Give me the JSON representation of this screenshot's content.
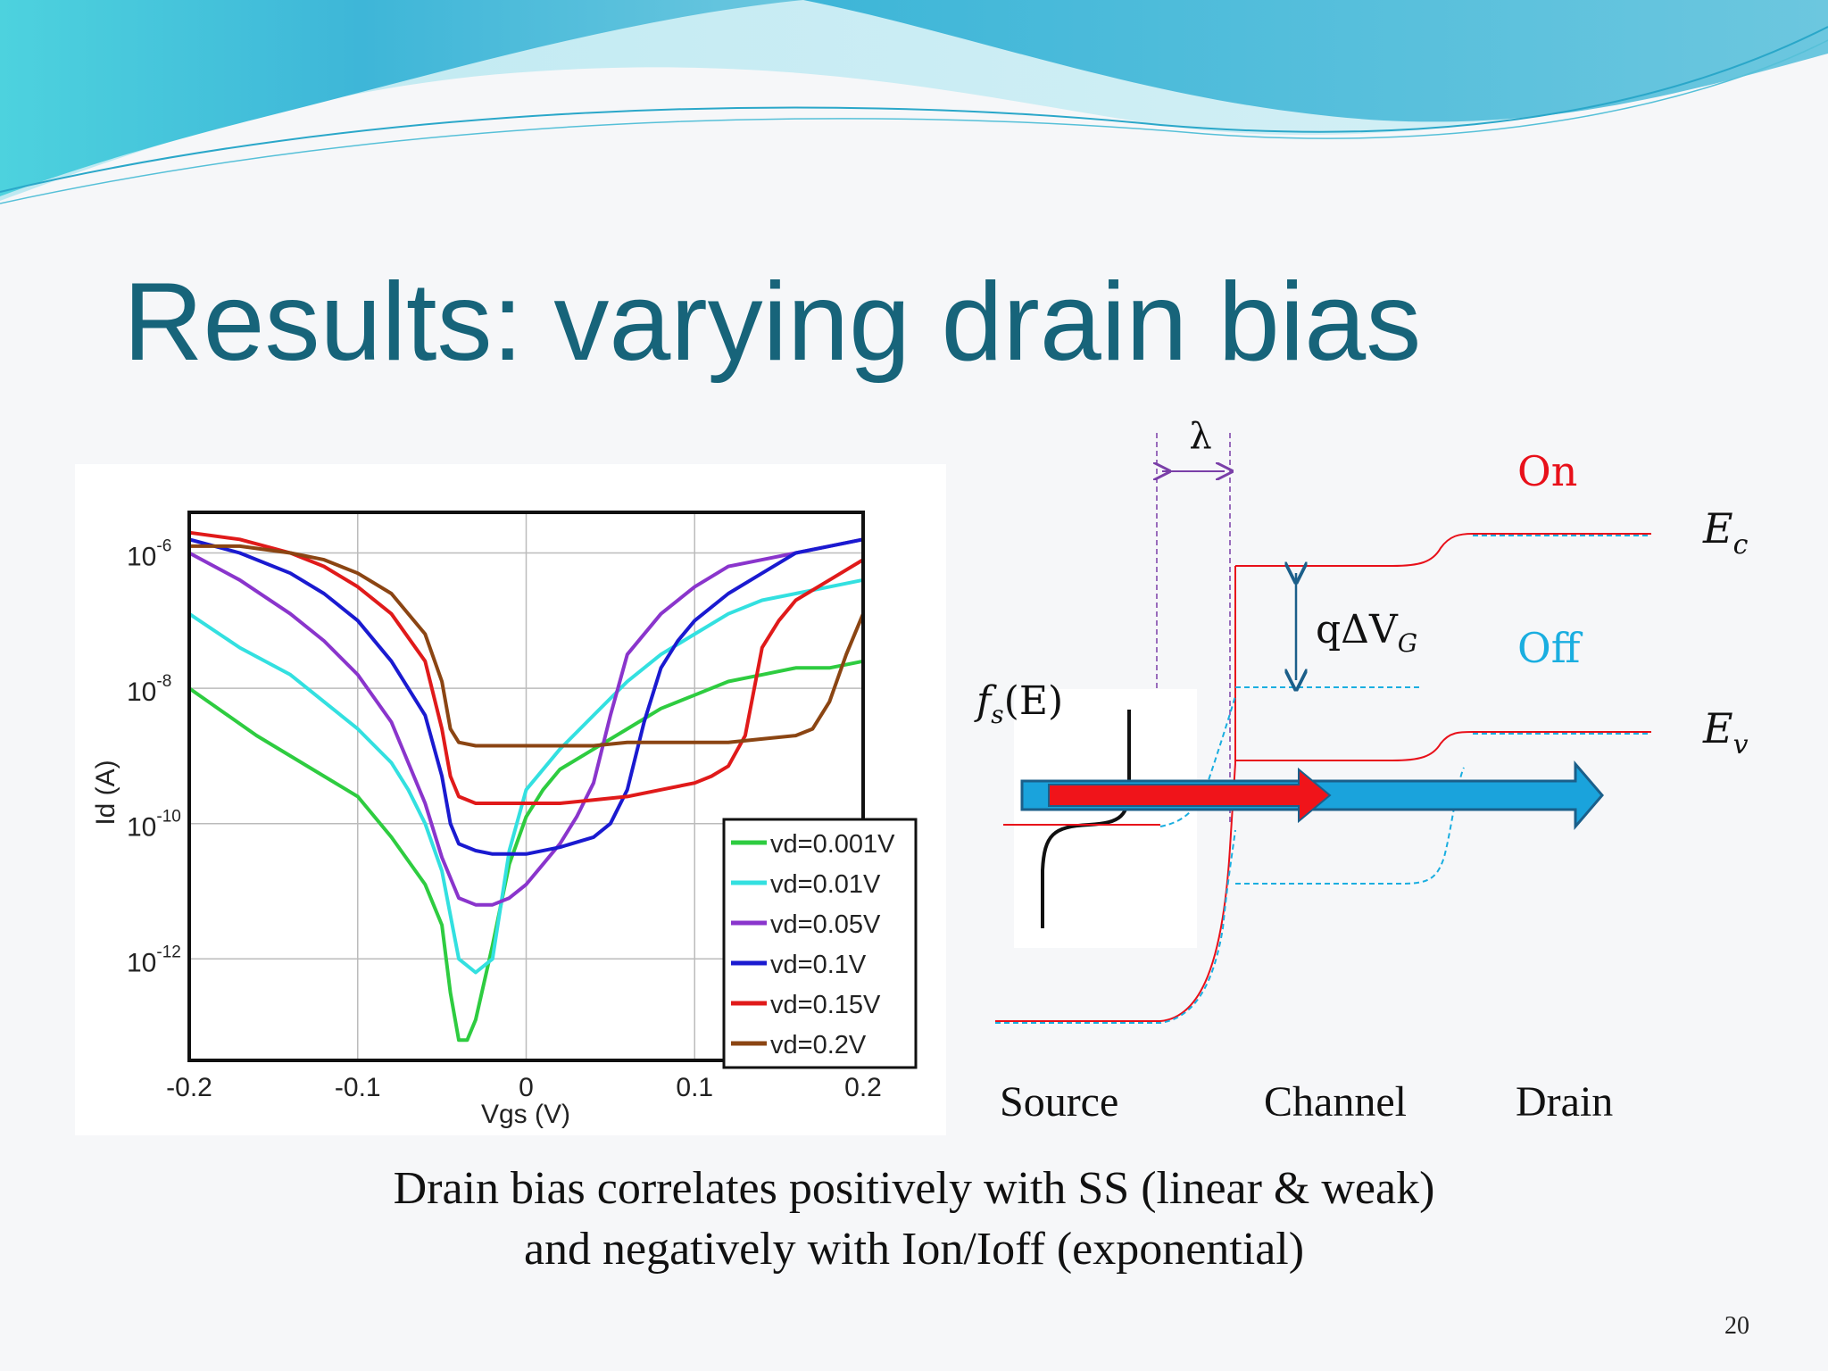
{
  "slide": {
    "title": "Results: varying drain bias",
    "caption_line1": "Drain bias correlates positively with SS (linear & weak)",
    "caption_line2": "and negatively with Ion/Ioff (exponential)",
    "page_number": "20"
  },
  "band_diagram": {
    "lambda_label": "λ",
    "on_label": "On",
    "off_label": "Off",
    "ec_label": "E",
    "ec_sub": "c",
    "ev_label": "E",
    "ev_sub": "v",
    "qdv_label": "qΔV",
    "qdv_sub": "G",
    "fs_label": "f",
    "fs_sub": "s",
    "fs_arg": "(E)",
    "regions": [
      "Source",
      "Channel",
      "Drain"
    ],
    "colors": {
      "on": "#e8101a",
      "off": "#1aaee0",
      "lambda": "#7a3fa8",
      "arrow_blue": "#1aa3dc",
      "arrow_red": "#f0141a"
    }
  },
  "chart_data": {
    "type": "line",
    "title": "",
    "xlabel": "Vgs (V)",
    "ylabel": "Id (A)",
    "xlim": [
      -0.2,
      0.2
    ],
    "ylim_log10": [
      -13.5,
      -5.4
    ],
    "xticks": [
      -0.2,
      -0.1,
      0,
      0.1,
      0.2
    ],
    "xtick_labels": [
      "-0.2",
      "-0.1",
      "0",
      "0.1",
      "0.2"
    ],
    "yticks_log10": [
      -6,
      -8,
      -10,
      -12
    ],
    "ytick_base": "10",
    "ytick_exponents": [
      "-6",
      "-8",
      "-10",
      "-12"
    ],
    "grid": true,
    "legend_position": "bottom-right",
    "series": [
      {
        "name": "vd=0.001V",
        "color": "#2ecc40",
        "x": [
          -0.2,
          -0.16,
          -0.12,
          -0.1,
          -0.08,
          -0.06,
          -0.05,
          -0.045,
          -0.04,
          -0.035,
          -0.03,
          -0.02,
          -0.01,
          0,
          0.01,
          0.02,
          0.04,
          0.06,
          0.08,
          0.1,
          0.12,
          0.14,
          0.16,
          0.18,
          0.2
        ],
        "y": [
          -8.0,
          -8.7,
          -9.3,
          -9.6,
          -10.2,
          -10.9,
          -11.5,
          -12.5,
          -13.2,
          -13.2,
          -12.9,
          -11.8,
          -10.6,
          -9.9,
          -9.5,
          -9.2,
          -8.9,
          -8.6,
          -8.3,
          -8.1,
          -7.9,
          -7.8,
          -7.7,
          -7.7,
          -7.6
        ]
      },
      {
        "name": "vd=0.01V",
        "color": "#33e0e0",
        "x": [
          -0.2,
          -0.17,
          -0.14,
          -0.12,
          -0.1,
          -0.08,
          -0.07,
          -0.06,
          -0.05,
          -0.04,
          -0.03,
          -0.02,
          -0.015,
          -0.01,
          0,
          0.02,
          0.04,
          0.06,
          0.08,
          0.1,
          0.12,
          0.14,
          0.16,
          0.18,
          0.2
        ],
        "y": [
          -6.9,
          -7.4,
          -7.8,
          -8.2,
          -8.6,
          -9.1,
          -9.5,
          -10.0,
          -10.7,
          -12.0,
          -12.2,
          -12.0,
          -11.2,
          -10.4,
          -9.5,
          -8.9,
          -8.4,
          -7.9,
          -7.5,
          -7.2,
          -6.9,
          -6.7,
          -6.6,
          -6.5,
          -6.4
        ]
      },
      {
        "name": "vd=0.05V",
        "color": "#8a35cc",
        "x": [
          -0.2,
          -0.17,
          -0.14,
          -0.12,
          -0.1,
          -0.08,
          -0.07,
          -0.06,
          -0.05,
          -0.04,
          -0.03,
          -0.02,
          -0.01,
          0,
          0.01,
          0.02,
          0.03,
          0.04,
          0.05,
          0.06,
          0.08,
          0.1,
          0.12,
          0.14,
          0.16,
          0.18,
          0.2
        ],
        "y": [
          -6.0,
          -6.4,
          -6.9,
          -7.3,
          -7.8,
          -8.5,
          -9.1,
          -9.7,
          -10.5,
          -11.1,
          -11.2,
          -11.2,
          -11.1,
          -10.9,
          -10.6,
          -10.3,
          -9.9,
          -9.4,
          -8.4,
          -7.5,
          -6.9,
          -6.5,
          -6.2,
          -6.1,
          -6.0,
          -5.9,
          -5.8
        ]
      },
      {
        "name": "vd=0.1V",
        "color": "#1a1ad0",
        "x": [
          -0.2,
          -0.17,
          -0.14,
          -0.12,
          -0.1,
          -0.08,
          -0.06,
          -0.05,
          -0.045,
          -0.04,
          -0.03,
          -0.02,
          -0.01,
          0,
          0.02,
          0.04,
          0.05,
          0.06,
          0.07,
          0.08,
          0.09,
          0.1,
          0.12,
          0.14,
          0.16,
          0.18,
          0.2
        ],
        "y": [
          -5.8,
          -6.0,
          -6.3,
          -6.6,
          -7.0,
          -7.6,
          -8.4,
          -9.3,
          -10.0,
          -10.3,
          -10.4,
          -10.45,
          -10.45,
          -10.45,
          -10.35,
          -10.2,
          -10.0,
          -9.5,
          -8.5,
          -7.7,
          -7.3,
          -7.0,
          -6.6,
          -6.3,
          -6.0,
          -5.9,
          -5.8
        ]
      },
      {
        "name": "vd=0.15V",
        "color": "#e01a1a",
        "x": [
          -0.2,
          -0.17,
          -0.14,
          -0.12,
          -0.1,
          -0.08,
          -0.06,
          -0.05,
          -0.045,
          -0.04,
          -0.03,
          -0.02,
          0,
          0.02,
          0.04,
          0.06,
          0.08,
          0.1,
          0.11,
          0.12,
          0.13,
          0.14,
          0.15,
          0.16,
          0.18,
          0.2
        ],
        "y": [
          -5.7,
          -5.8,
          -6.0,
          -6.2,
          -6.5,
          -6.9,
          -7.6,
          -8.6,
          -9.3,
          -9.6,
          -9.7,
          -9.7,
          -9.7,
          -9.7,
          -9.65,
          -9.6,
          -9.5,
          -9.4,
          -9.3,
          -9.15,
          -8.7,
          -7.4,
          -7.0,
          -6.7,
          -6.4,
          -6.1
        ]
      },
      {
        "name": "vd=0.2V",
        "color": "#8b4513",
        "x": [
          -0.2,
          -0.17,
          -0.14,
          -0.12,
          -0.1,
          -0.08,
          -0.06,
          -0.05,
          -0.045,
          -0.04,
          -0.03,
          -0.02,
          0,
          0.02,
          0.04,
          0.06,
          0.08,
          0.1,
          0.12,
          0.14,
          0.16,
          0.17,
          0.18,
          0.19,
          0.2
        ],
        "y": [
          -5.9,
          -5.9,
          -6.0,
          -6.1,
          -6.3,
          -6.6,
          -7.2,
          -7.9,
          -8.6,
          -8.8,
          -8.85,
          -8.85,
          -8.85,
          -8.85,
          -8.85,
          -8.8,
          -8.8,
          -8.8,
          -8.8,
          -8.75,
          -8.7,
          -8.6,
          -8.2,
          -7.5,
          -6.9
        ]
      }
    ]
  }
}
